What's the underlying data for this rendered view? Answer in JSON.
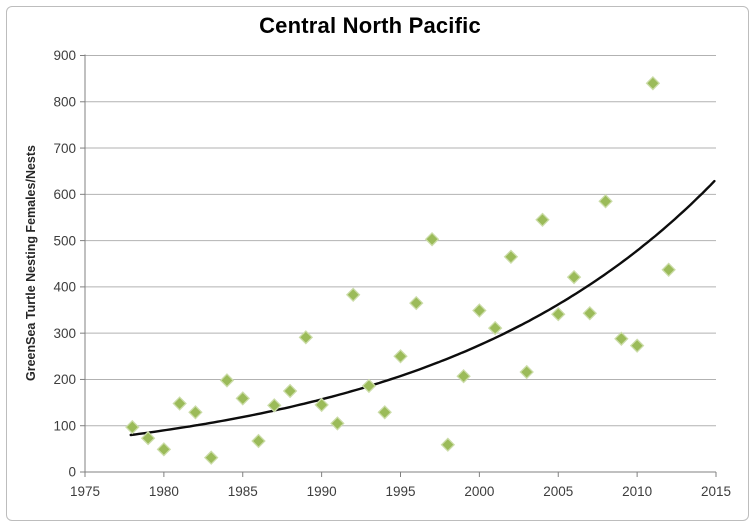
{
  "window": {
    "title": "Central North Pacific"
  },
  "colors": {
    "background": "#ffffff",
    "border": "#bdbdbd",
    "gridline": "#b2b2b2",
    "axis": "#808080",
    "tick_text": "#3d3d3d",
    "title_text": "#000000",
    "marker": "#9BBB59",
    "marker_halo": "#cbdca8",
    "trend": "#0d0d0d"
  },
  "chart_data": {
    "type": "scatter",
    "title": "Central North Pacific",
    "xlabel": "",
    "ylabel": "GreenSea Turtle Nesting Females/Nests",
    "xlim": [
      1975,
      2015
    ],
    "ylim": [
      0,
      900
    ],
    "x_ticks": [
      1975,
      1980,
      1985,
      1990,
      1995,
      2000,
      2005,
      2010,
      2015
    ],
    "y_ticks": [
      0,
      100,
      200,
      300,
      400,
      500,
      600,
      700,
      800,
      900
    ],
    "grid": "horizontal",
    "legend_position": "none",
    "series": [
      {
        "name": "Green sea turtle nesting females/nests",
        "marker": "diamond",
        "color": "#9BBB59",
        "points": [
          [
            1978,
            97
          ],
          [
            1979,
            73
          ],
          [
            1980,
            49
          ],
          [
            1981,
            148
          ],
          [
            1982,
            129
          ],
          [
            1983,
            31
          ],
          [
            1984,
            198
          ],
          [
            1985,
            159
          ],
          [
            1986,
            67
          ],
          [
            1987,
            144
          ],
          [
            1988,
            175
          ],
          [
            1989,
            291
          ],
          [
            1990,
            145
          ],
          [
            1991,
            105
          ],
          [
            1992,
            383
          ],
          [
            1993,
            186
          ],
          [
            1994,
            129
          ],
          [
            1995,
            250
          ],
          [
            1996,
            365
          ],
          [
            1997,
            503
          ],
          [
            1998,
            59
          ],
          [
            1999,
            207
          ],
          [
            2000,
            349
          ],
          [
            2001,
            311
          ],
          [
            2002,
            465
          ],
          [
            2003,
            216
          ],
          [
            2004,
            545
          ],
          [
            2005,
            341
          ],
          [
            2006,
            421
          ],
          [
            2007,
            343
          ],
          [
            2008,
            585
          ],
          [
            2009,
            288
          ],
          [
            2010,
            273
          ],
          [
            2011,
            840
          ],
          [
            2012,
            437
          ]
        ]
      }
    ],
    "trendline": {
      "shape": "exponential",
      "x_start": 1977.9,
      "y_start": 80,
      "x_end": 2015,
      "y_end": 632
    }
  }
}
